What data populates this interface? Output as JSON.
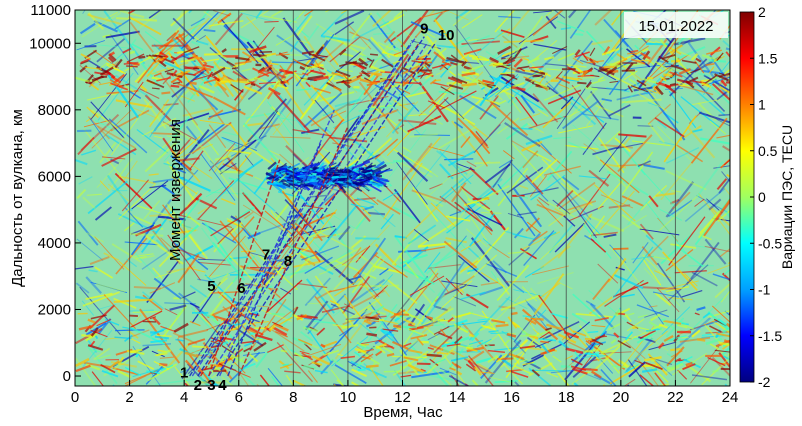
{
  "chart_data": {
    "type": "heatmap",
    "date_label": "15.01.2022",
    "xlabel": "Время, Час",
    "ylabel": "Дальность от вулкана, км",
    "colorbar_label": "Вариации ПЭС, TECU",
    "annotation": "Момент извержения",
    "xlim": [
      0,
      24
    ],
    "ylim": [
      -300,
      11000
    ],
    "x_ticks": [
      0,
      2,
      4,
      6,
      8,
      10,
      12,
      14,
      16,
      18,
      20,
      22,
      24
    ],
    "y_ticks": [
      0,
      2000,
      4000,
      6000,
      8000,
      10000,
      11000
    ],
    "colorbar_range": [
      -2,
      2
    ],
    "colorbar_ticks": [
      -2,
      -1.5,
      -1,
      -0.5,
      0,
      0.5,
      1,
      1.5,
      2
    ],
    "colormap": [
      "#000080",
      "#0000ff",
      "#00a0ff",
      "#00ffff",
      "#a0ff60",
      "#ffff00",
      "#ff8000",
      "#ff0000",
      "#800000"
    ],
    "background_color": "#8ee0b0",
    "grid_lines_x": [
      2,
      4,
      6,
      8,
      10,
      12,
      14,
      16,
      18,
      20,
      22
    ],
    "eruption_time": 4.2,
    "disturbance_bands": [
      {
        "y_center": 9200,
        "y_halfwidth": 550,
        "x_range": [
          0,
          24
        ],
        "tone": 0.7
      },
      {
        "y_center": 1000,
        "y_halfwidth": 900,
        "x_range": [
          0,
          24
        ],
        "tone": 0.3
      },
      {
        "y_center": 6000,
        "y_halfwidth": 250,
        "x_range": [
          7,
          11
        ],
        "tone": -0.7
      }
    ],
    "wave_fronts": [
      {
        "label": "1",
        "t0": 4.2,
        "t1": 12.3,
        "r0": 0,
        "r1": 10000
      },
      {
        "label": "2",
        "t0": 4.6,
        "t1": 12.6,
        "r0": 0,
        "r1": 10000
      },
      {
        "label": "3",
        "t0": 4.9,
        "t1": 12.9,
        "r0": 0,
        "r1": 10000
      },
      {
        "label": "4",
        "t0": 5.2,
        "t1": 13.2,
        "r0": 0,
        "r1": 10000
      },
      {
        "label": "5",
        "t0": 4.9,
        "t1": 7.5,
        "r0": 0,
        "r1": 6500
      },
      {
        "label": "6",
        "t0": 5.3,
        "t1": 9.5,
        "r0": 0,
        "r1": 8000
      },
      {
        "label": "7",
        "t0": 5.6,
        "t1": 9.0,
        "r0": 0,
        "r1": 7000
      },
      {
        "label": "8",
        "t0": 6.0,
        "t1": 10.0,
        "r0": 0,
        "r1": 7500
      },
      {
        "label": "9",
        "t0": 4.3,
        "t1": 12.5,
        "r0": 0,
        "r1": 10200
      },
      {
        "label": "10",
        "t0": 4.5,
        "t1": 12.8,
        "r0": 0,
        "r1": 10200
      }
    ],
    "front_labels": [
      {
        "text": "1",
        "x": 4.0,
        "y": -50
      },
      {
        "text": "2",
        "x": 4.5,
        "y": -420
      },
      {
        "text": "3",
        "x": 5.0,
        "y": -420
      },
      {
        "text": "4",
        "x": 5.4,
        "y": -420
      },
      {
        "text": "5",
        "x": 5.0,
        "y": 2550
      },
      {
        "text": "6",
        "x": 6.1,
        "y": 2500
      },
      {
        "text": "7",
        "x": 7.0,
        "y": 3500
      },
      {
        "text": "8",
        "x": 7.8,
        "y": 3300
      },
      {
        "text": "9",
        "x": 12.8,
        "y": 10300
      },
      {
        "text": "10",
        "x": 13.6,
        "y": 10100
      }
    ]
  }
}
